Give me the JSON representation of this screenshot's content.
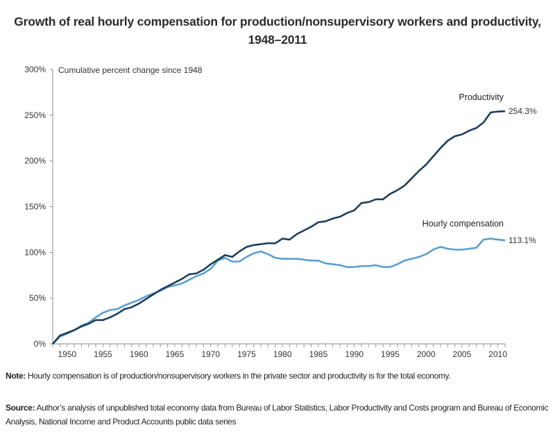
{
  "chart_data": {
    "type": "line",
    "title": "Growth of real hourly compensation for production/nonsupervisory workers and productivity, 1948–2011",
    "ylabel": "Cumulative percent change since 1948",
    "xlabel": "",
    "xlim": [
      1948,
      2011
    ],
    "ylim": [
      0,
      300
    ],
    "yticks": [
      "0%",
      "50%",
      "100%",
      "150%",
      "200%",
      "250%",
      "300%"
    ],
    "ytick_values": [
      0,
      50,
      100,
      150,
      200,
      250,
      300
    ],
    "xticks": [
      "1950",
      "1955",
      "1960",
      "1965",
      "1970",
      "1975",
      "1980",
      "1985",
      "1990",
      "1995",
      "2000",
      "2005",
      "2010"
    ],
    "grid": false,
    "legend": "direct labels at line ends",
    "x": [
      1948,
      1949,
      1950,
      1951,
      1952,
      1953,
      1954,
      1955,
      1956,
      1957,
      1958,
      1959,
      1960,
      1961,
      1962,
      1963,
      1964,
      1965,
      1966,
      1967,
      1968,
      1969,
      1970,
      1971,
      1972,
      1973,
      1974,
      1975,
      1976,
      1977,
      1978,
      1979,
      1980,
      1981,
      1982,
      1983,
      1984,
      1985,
      1986,
      1987,
      1988,
      1989,
      1990,
      1991,
      1992,
      1993,
      1994,
      1995,
      1996,
      1997,
      1998,
      1999,
      2000,
      2001,
      2002,
      2003,
      2004,
      2005,
      2006,
      2007,
      2008,
      2009,
      2010,
      2011
    ],
    "series": [
      {
        "name": "Productivity",
        "color": "#1c3d5c",
        "end_label": "254.3%",
        "values": [
          0,
          9,
          12,
          15,
          19,
          22,
          26,
          26,
          29,
          33,
          38,
          40,
          44,
          49,
          54,
          59,
          63,
          67,
          71,
          76,
          77,
          81,
          87,
          92,
          97,
          95,
          101,
          106,
          108,
          109,
          110,
          110,
          115,
          114,
          120,
          124,
          128,
          133,
          134,
          137,
          139,
          143,
          146,
          154,
          155,
          158,
          158,
          164,
          168,
          173,
          181,
          189,
          196,
          205,
          214,
          222,
          227,
          229,
          233,
          236,
          242,
          253,
          254,
          254.3
        ]
      },
      {
        "name": "Hourly compensation",
        "color": "#5a9fd0",
        "end_label": "113.1%",
        "values": [
          0,
          8,
          11,
          15,
          20,
          23,
          29,
          34,
          37,
          38,
          42,
          45,
          48,
          52,
          55,
          58,
          62,
          64,
          66,
          70,
          74,
          77,
          82,
          91,
          94,
          90,
          90,
          95,
          99,
          101,
          98,
          94,
          93,
          93,
          93,
          92,
          91,
          91,
          88,
          87,
          86,
          84,
          84,
          85,
          85,
          86,
          84,
          84,
          87,
          91,
          93,
          95,
          98,
          103,
          106,
          104,
          103,
          103,
          104,
          105,
          114,
          115,
          114,
          113.1
        ]
      }
    ]
  },
  "notes": {
    "note_label": "Note:",
    "note_text": " Hourly compensation is of production/nonsupervisory workers in the private sector and productivity is for the total economy.",
    "source_label": "Source:",
    "source_text": " Author’s analysis of unpublished total economy data from Bureau of Labor Statistics, Labor Productivity and Costs program and Bureau of Economic Analysis, National Income and Product Accounts public data series"
  }
}
